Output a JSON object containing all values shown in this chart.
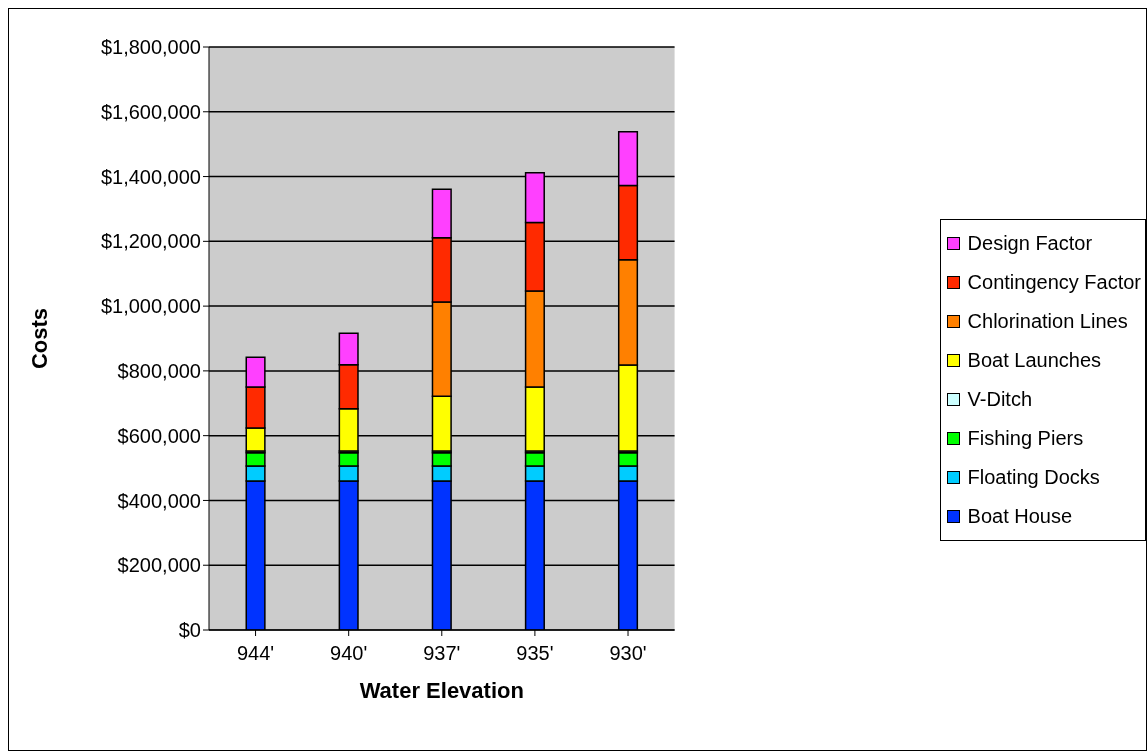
{
  "chart_data": {
    "type": "bar",
    "stacked": true,
    "xlabel": "Water Elevation",
    "ylabel": "Costs",
    "categories": [
      "944'",
      "940'",
      "937'",
      "935'",
      "930'"
    ],
    "series": [
      {
        "name": "Boat House",
        "color": "#0033ff",
        "values": [
          460000,
          460000,
          460000,
          460000,
          460000
        ]
      },
      {
        "name": "Floating Docks",
        "color": "#00ccff",
        "values": [
          46000,
          46000,
          46000,
          46000,
          46000
        ]
      },
      {
        "name": "Fishing Piers",
        "color": "#00ff00",
        "values": [
          41000,
          41000,
          41000,
          41000,
          41000
        ]
      },
      {
        "name": "V-Ditch",
        "color": "#ccffff",
        "values": [
          6000,
          6000,
          6000,
          6000,
          6000
        ]
      },
      {
        "name": "Boat Launches",
        "color": "#ffff00",
        "values": [
          71000,
          130000,
          169000,
          197000,
          265000
        ]
      },
      {
        "name": "Chlorination Lines",
        "color": "#ff8000",
        "values": [
          0,
          0,
          291000,
          297000,
          325000
        ]
      },
      {
        "name": "Contingency Factor",
        "color": "#ff2a00",
        "values": [
          126000,
          136000,
          198000,
          211000,
          229000
        ]
      },
      {
        "name": "Design Factor",
        "color": "#ff40ff",
        "values": [
          92000,
          97000,
          150000,
          154000,
          166000
        ]
      }
    ],
    "ylim": [
      0,
      1800000
    ],
    "yticks": [
      {
        "value": 0,
        "label": "$0"
      },
      {
        "value": 200000,
        "label": "$200,000"
      },
      {
        "value": 400000,
        "label": "$400,000"
      },
      {
        "value": 600000,
        "label": "$600,000"
      },
      {
        "value": 800000,
        "label": "$800,000"
      },
      {
        "value": 1000000,
        "label": "$1,000,000"
      },
      {
        "value": 1200000,
        "label": "$1,200,000"
      },
      {
        "value": 1400000,
        "label": "$1,400,000"
      },
      {
        "value": 1600000,
        "label": "$1,600,000"
      },
      {
        "value": 1800000,
        "label": "$1,800,000"
      }
    ],
    "grid": "y",
    "legend": "right"
  }
}
